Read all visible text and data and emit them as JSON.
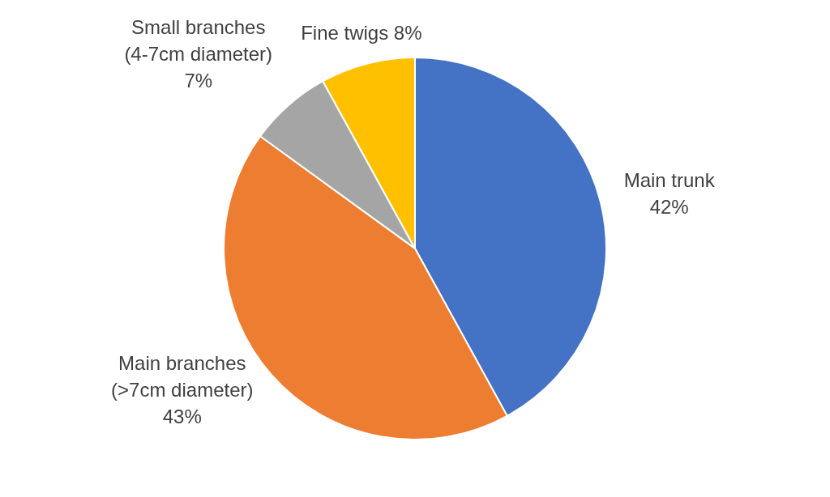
{
  "chart_data": {
    "type": "pie",
    "categories": [
      "Main trunk",
      "Main branches (>7cm diameter)",
      "Small branches (4-7cm diameter)",
      "Fine twigs"
    ],
    "values": [
      42,
      43,
      7,
      8
    ],
    "colors": [
      "#4472c4",
      "#ed7d31",
      "#a5a5a5",
      "#ffc000"
    ],
    "value_labels": [
      "42%",
      "43%",
      "7%",
      "8%"
    ],
    "legend": false
  }
}
